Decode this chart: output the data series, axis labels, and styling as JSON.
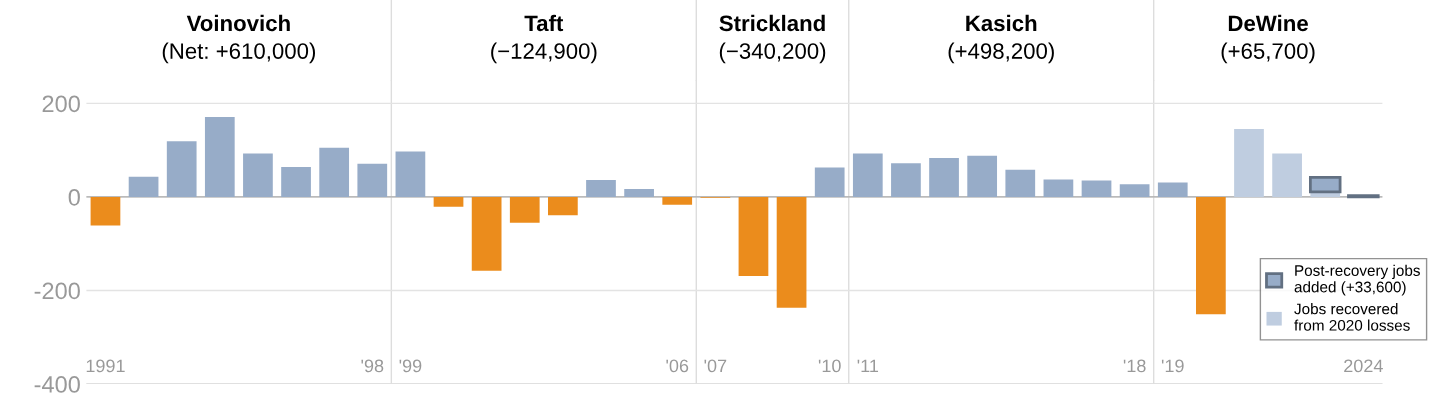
{
  "chart_data": {
    "type": "bar",
    "stacked": true,
    "annotations": [
      "Voinovich\n(Net: +610,000)",
      "Taft\n(−124,900)",
      "Strickland\n(−340,200)",
      "Kasich\n(+498,200)",
      "DeWine\n(+65,700)"
    ],
    "x": [
      1991,
      1992,
      1993,
      1994,
      1995,
      1996,
      1997,
      1998,
      1999,
      2000,
      2001,
      2002,
      2003,
      2004,
      2005,
      2006,
      2007,
      2008,
      2009,
      2010,
      2011,
      2012,
      2013,
      2014,
      2015,
      2016,
      2017,
      2018,
      2019,
      2020,
      2021,
      2022,
      2023,
      2024
    ],
    "series": [
      {
        "color": "#97acc8",
        "colors": [
          "#eb8c1c",
          "#97acc8",
          "#97acc8",
          "#97acc8",
          "#97acc8",
          "#97acc8",
          "#97acc8",
          "#97acc8",
          "#97acc8",
          "#eb8c1c",
          "#eb8c1c",
          "#eb8c1c",
          "#eb8c1c",
          "#97acc8",
          "#97acc8",
          "#eb8c1c",
          "#eb8c1c",
          "#eb8c1c",
          "#eb8c1c",
          "#97acc8",
          "#97acc8",
          "#97acc8",
          "#97acc8",
          "#97acc8",
          "#97acc8",
          "#97acc8",
          "#97acc8",
          "#97acc8",
          "#97acc8",
          "#eb8c1c",
          null,
          null,
          null,
          null
        ],
        "values": [
          -61,
          43,
          119,
          171,
          93,
          64,
          105,
          71,
          97,
          -21,
          -158,
          -55,
          -39,
          36,
          17,
          -17,
          -2,
          -169,
          -237,
          63,
          93,
          72,
          83,
          88,
          58,
          37,
          35,
          27,
          31,
          -251,
          null,
          null,
          null,
          null
        ]
      },
      {
        "name": "Jobs recovered from 2020 losses",
        "color": "#bfcde0",
        "values": [
          null,
          null,
          null,
          null,
          null,
          null,
          null,
          null,
          null,
          null,
          null,
          null,
          null,
          null,
          null,
          null,
          null,
          null,
          null,
          null,
          null,
          null,
          null,
          null,
          null,
          null,
          null,
          null,
          null,
          null,
          145,
          93,
          11,
          null
        ]
      },
      {
        "name": "Post-recovery jobs added (+33,600)",
        "color": "#97acc8",
        "line_style": "solid",
        "values": [
          null,
          null,
          null,
          null,
          null,
          null,
          null,
          null,
          null,
          null,
          null,
          null,
          null,
          null,
          null,
          null,
          null,
          null,
          null,
          null,
          null,
          null,
          null,
          null,
          null,
          null,
          null,
          null,
          null,
          null,
          null,
          null,
          31,
          3
        ]
      }
    ],
    "xlim": [
      1990.5,
      2024.5
    ],
    "ylim": [
      -400,
      250
    ],
    "xticks": [
      {
        "value": 1991,
        "label": "1991"
      },
      {
        "value": 1998,
        "label": "'98"
      },
      {
        "value": 1999,
        "label": "'99"
      },
      {
        "value": 2006,
        "label": "'06"
      },
      {
        "value": 2007,
        "label": "'07"
      },
      {
        "value": 2010,
        "label": "'10"
      },
      {
        "value": 2011,
        "label": "'11"
      },
      {
        "value": 2018,
        "label": "'18"
      },
      {
        "value": 2019,
        "label": "'19"
      },
      {
        "value": 2024,
        "label": "2024"
      }
    ],
    "yticks": [
      -400,
      -200,
      0,
      200
    ],
    "ref_lines": [
      {
        "axis": "x",
        "value": 1998.5,
        "color": "#dddddd"
      },
      {
        "axis": "x",
        "value": 2006.5,
        "color": "#dddddd"
      },
      {
        "axis": "x",
        "value": 2010.5,
        "color": "#dddddd"
      },
      {
        "axis": "x",
        "value": 2018.5,
        "color": "#dddddd"
      }
    ],
    "grid": "y",
    "legend": "bottom right"
  }
}
